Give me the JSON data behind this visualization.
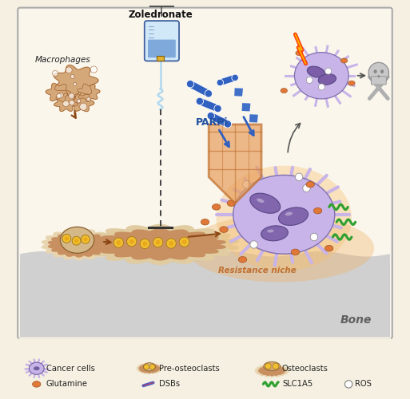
{
  "bg_outer": "#f5f0e1",
  "bg_inner": "#faf6ec",
  "bone_label": "Bone",
  "zoledronate_label": "Zoledronate",
  "parpi_label": "PARPi",
  "macrophages_label": "Macrophages",
  "resistance_label": "Resistance niche",
  "cancer_color": "#c8b4e8",
  "cancer_dark": "#7b5ea7",
  "osteo_fill": "#d4a870",
  "osteo_edge": "#8B6030",
  "pre_yellow": "#f0c030",
  "pre_yellow_edge": "#a07010",
  "bone_gray": "#b8b8b8",
  "bone_light": "#d0d0d0",
  "arrow_brown": "#8B4513",
  "shield_color": "#e8a060",
  "shield_edge": "#c07030",
  "lightning_red": "#ff3300",
  "lightning_yellow": "#ffaa00",
  "pill_color": "#3060c0",
  "green_color": "#30a030",
  "skull_color": "#b8b8b8",
  "glutamine_color": "#e07838",
  "glutamine_edge": "#a05020",
  "macro_fill": "#d4a878",
  "macro_edge": "#a06030",
  "iv_bag_fill": "#d0e8f8",
  "iv_bag_edge": "#4060a0",
  "iv_liquid": "#6090d0",
  "warm_glow": "#f0b060",
  "legend_cancer_fill": "#c8b4e8",
  "legend_cancer_edge": "#7060a0"
}
